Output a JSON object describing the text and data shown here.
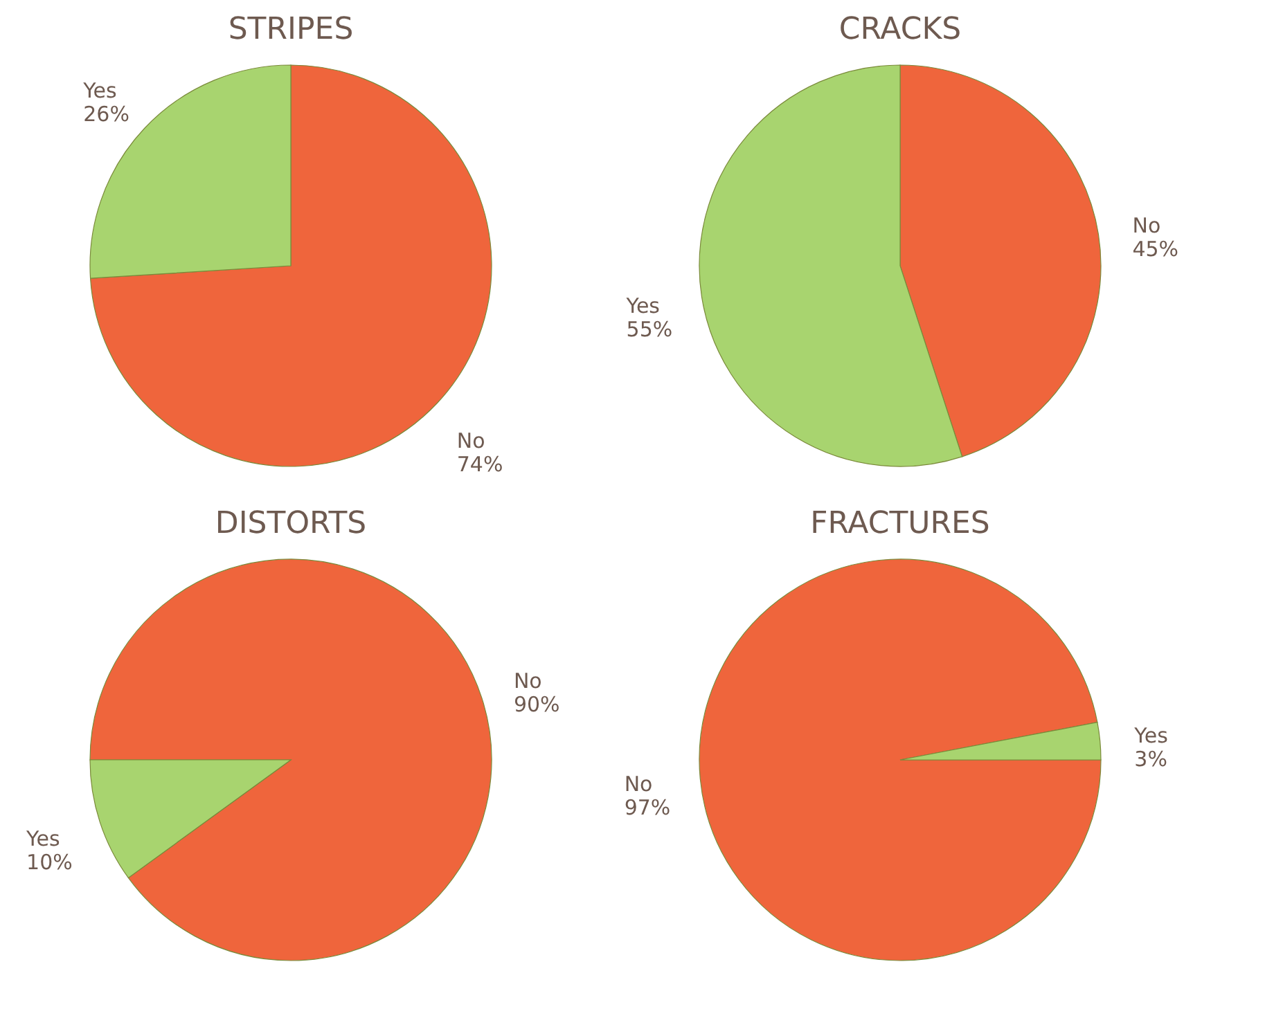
{
  "chart_data": [
    {
      "type": "pie",
      "title": "STRIPES",
      "categories": [
        "No",
        "Yes"
      ],
      "values": [
        74,
        26
      ],
      "value_labels": [
        "74%",
        "26%"
      ],
      "colors": [
        "#ef653c",
        "#a8d46f"
      ]
    },
    {
      "type": "pie",
      "title": "CRACKS",
      "categories": [
        "No",
        "Yes"
      ],
      "values": [
        45,
        55
      ],
      "value_labels": [
        "45%",
        "55%"
      ],
      "colors": [
        "#ef653c",
        "#a8d46f"
      ]
    },
    {
      "type": "pie",
      "title": "DISTORTS",
      "categories": [
        "No",
        "Yes"
      ],
      "values": [
        90,
        10
      ],
      "value_labels": [
        "90%",
        "10%"
      ],
      "colors": [
        "#ef653c",
        "#a8d46f"
      ]
    },
    {
      "type": "pie",
      "title": "FRACTURES",
      "categories": [
        "No",
        "Yes"
      ],
      "values": [
        97,
        3
      ],
      "value_labels": [
        "97%",
        "3%"
      ],
      "colors": [
        "#ef653c",
        "#a8d46f"
      ]
    }
  ]
}
